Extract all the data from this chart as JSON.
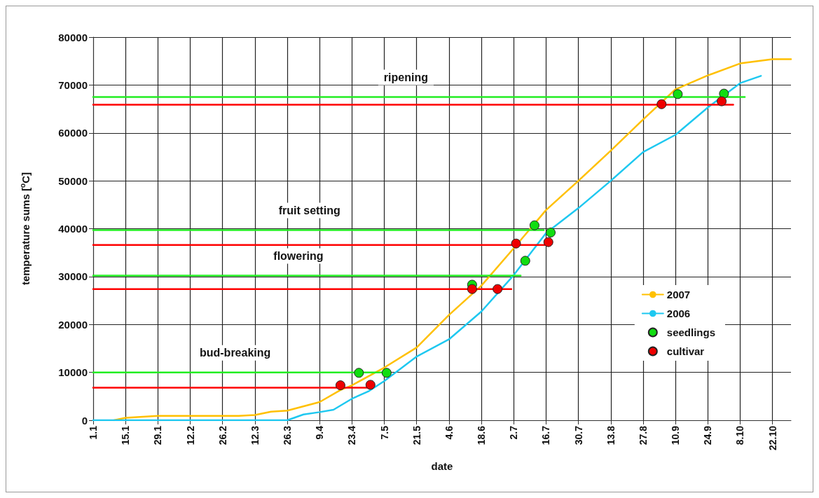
{
  "chart_data": {
    "type": "line",
    "xlabel": "date",
    "ylabel": "temperature sums [$^{o}$C]",
    "xlim": [
      "--01-01",
      "--10-30"
    ],
    "xticks": [
      {
        "value": "--01-01",
        "label": "1.1"
      },
      {
        "value": "--01-15",
        "label": "15.1"
      },
      {
        "value": "--01-29",
        "label": "29.1"
      },
      {
        "value": "--02-12",
        "label": "12.2"
      },
      {
        "value": "--02-26",
        "label": "26.2"
      },
      {
        "value": "--03-12",
        "label": "12.3"
      },
      {
        "value": "--03-26",
        "label": "26.3"
      },
      {
        "value": "--04-09",
        "label": "9.4"
      },
      {
        "value": "--04-23",
        "label": "23.4"
      },
      {
        "value": "--05-07",
        "label": "7.5"
      },
      {
        "value": "--05-21",
        "label": "21.5"
      },
      {
        "value": "--06-04",
        "label": "4.6"
      },
      {
        "value": "--06-18",
        "label": "18.6"
      },
      {
        "value": "--07-02",
        "label": "2.7"
      },
      {
        "value": "--07-16",
        "label": "16.7"
      },
      {
        "value": "--07-30",
        "label": "30.7"
      },
      {
        "value": "--08-13",
        "label": "13.8"
      },
      {
        "value": "--08-27",
        "label": "27.8"
      },
      {
        "value": "--09-10",
        "label": "10.9"
      },
      {
        "value": "--09-24",
        "label": "24.9"
      },
      {
        "value": "--10-08",
        "label": "8.10"
      },
      {
        "value": "--10-22",
        "label": "22.10"
      }
    ],
    "ylim": [
      0,
      80000
    ],
    "yticks": [
      0,
      10000,
      20000,
      30000,
      40000,
      50000,
      60000,
      70000,
      80000
    ],
    "grid": true,
    "legend": "right",
    "series": [
      {
        "name": "2007",
        "color": "#ffc000",
        "marker": "none",
        "x": [
          "--01-10",
          "--01-15",
          "--01-29",
          "--03-05",
          "--03-12",
          "--03-19",
          "--03-26",
          "--04-09",
          "--04-18",
          "--04-23",
          "--05-07",
          "--05-21",
          "--06-04",
          "--06-18",
          "--07-02",
          "--07-16",
          "--07-30",
          "--08-13",
          "--08-27",
          "--09-10",
          "--09-24",
          "--10-08",
          "--10-22",
          "--10-30"
        ],
        "values": [
          0,
          500,
          900,
          900,
          1100,
          1800,
          2000,
          3800,
          6300,
          7300,
          11000,
          15200,
          22000,
          28100,
          35900,
          43900,
          50000,
          56300,
          62800,
          69100,
          72000,
          74500,
          75400,
          75400
        ]
      },
      {
        "name": "2006",
        "color": "#1ec8f0",
        "marker": "none",
        "x": [
          "--01-01",
          "--03-26",
          "--04-02",
          "--04-09",
          "--04-15",
          "--04-23",
          "--04-30",
          "--05-07",
          "--05-21",
          "--06-04",
          "--06-18",
          "--07-02",
          "--07-16",
          "--07-30",
          "--08-13",
          "--08-27",
          "--09-10",
          "--09-24",
          "--10-08",
          "--10-17"
        ],
        "values": [
          0,
          0,
          1200,
          1700,
          2200,
          4500,
          6000,
          8200,
          13300,
          16900,
          22700,
          30300,
          39100,
          44300,
          50000,
          56000,
          59600,
          65300,
          70400,
          71900
        ]
      },
      {
        "color": "#22ee22",
        "marker": "none",
        "x": [
          "--01-01",
          "--05-09"
        ],
        "values": [
          10000,
          10000
        ]
      },
      {
        "color": "#ff0000",
        "marker": "none",
        "x": [
          "--01-01",
          "--04-30"
        ],
        "values": [
          6800,
          6800
        ]
      },
      {
        "color": "#22ee22",
        "marker": "none",
        "x": [
          "--01-01",
          "--07-05"
        ],
        "values": [
          30200,
          30200
        ]
      },
      {
        "color": "#ff0000",
        "marker": "none",
        "x": [
          "--01-01",
          "--07-01"
        ],
        "values": [
          27400,
          27400
        ]
      },
      {
        "color": "#22ee22",
        "marker": "none",
        "x": [
          "--01-01",
          "--07-15"
        ],
        "values": [
          39700,
          39700
        ]
      },
      {
        "color": "#ff0000",
        "marker": "none",
        "x": [
          "--01-01",
          "--07-16"
        ],
        "values": [
          36600,
          36600
        ]
      },
      {
        "color": "#22ee22",
        "marker": "none",
        "x": [
          "--01-01",
          "--10-10"
        ],
        "values": [
          67500,
          67500
        ]
      },
      {
        "color": "#ff0000",
        "marker": "none",
        "x": [
          "--01-01",
          "--10-05"
        ],
        "values": [
          65900,
          65900
        ]
      },
      {
        "name": "seedlings",
        "type": "scatter",
        "color": "#11dd11",
        "marker": "circle",
        "x": [
          "--04-26",
          "--05-08",
          "--06-14",
          "--07-07",
          "--07-11",
          "--07-18",
          "--09-11",
          "--10-01"
        ],
        "values": [
          9900,
          9900,
          28300,
          33300,
          40700,
          39200,
          68100,
          68200
        ]
      },
      {
        "name": "cultivar",
        "type": "scatter",
        "color": "#ee0000",
        "marker": "circle",
        "x": [
          "--04-18",
          "--05-01",
          "--06-14",
          "--06-25",
          "--07-03",
          "--07-17",
          "--09-04",
          "--09-30"
        ],
        "values": [
          7300,
          7400,
          27400,
          27400,
          36900,
          37200,
          66000,
          66600
        ]
      }
    ],
    "annotations": [
      "bud-breaking",
      "flowering",
      "fruit setting",
      "ripening"
    ]
  }
}
